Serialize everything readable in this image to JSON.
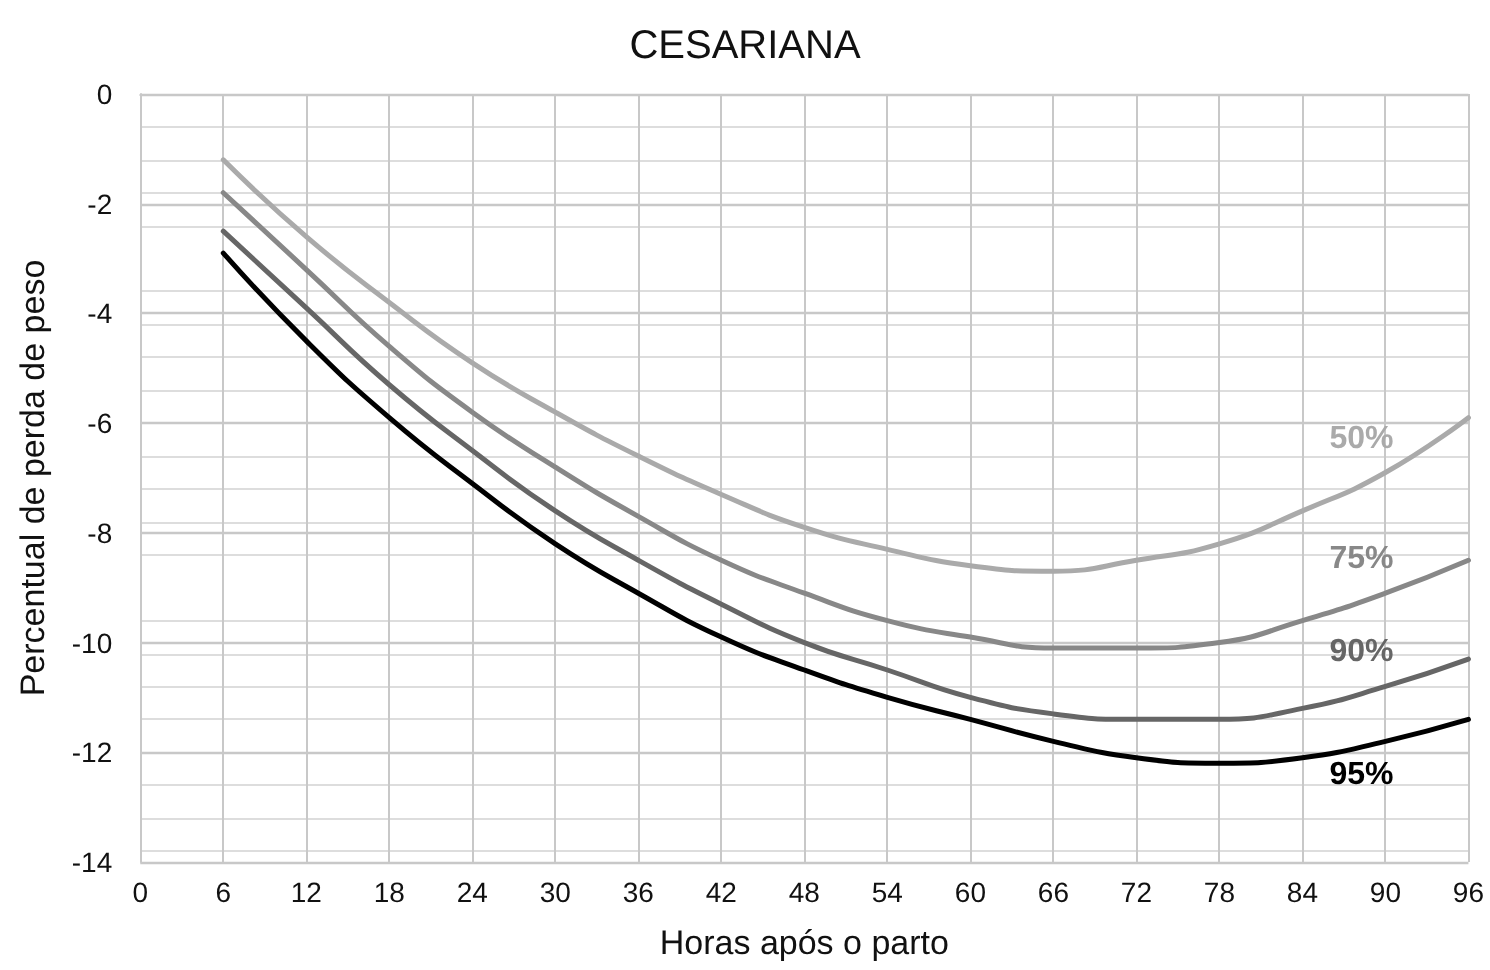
{
  "chart_data": {
    "type": "line",
    "title": "CESARIANA",
    "xlabel": "Horas após o parto",
    "ylabel": "Percentual de perda de peso",
    "x": [
      6,
      12,
      18,
      24,
      30,
      36,
      42,
      48,
      54,
      60,
      66,
      72,
      78,
      84,
      90,
      96
    ],
    "series": [
      {
        "name": "50%",
        "color": "#aaaaaa",
        "values": [
          -1.2,
          -2.6,
          -3.8,
          -4.9,
          -5.8,
          -6.6,
          -7.3,
          -7.9,
          -8.3,
          -8.6,
          -8.7,
          -8.5,
          -8.2,
          -7.6,
          -6.9,
          -5.9
        ]
      },
      {
        "name": "75%",
        "color": "#888888",
        "values": [
          -1.8,
          -3.2,
          -4.6,
          -5.8,
          -6.8,
          -7.7,
          -8.5,
          -9.1,
          -9.6,
          -9.9,
          -10.1,
          -10.1,
          -10.0,
          -9.6,
          -9.1,
          -8.5
        ]
      },
      {
        "name": "90%",
        "color": "#666666",
        "values": [
          -2.5,
          -3.9,
          -5.3,
          -6.5,
          -7.6,
          -8.5,
          -9.3,
          -10.0,
          -10.5,
          -11.0,
          -11.3,
          -11.4,
          -11.4,
          -11.2,
          -10.8,
          -10.3
        ]
      },
      {
        "name": "95%",
        "color": "#000000",
        "values": [
          -2.9,
          -4.5,
          -5.9,
          -7.1,
          -8.2,
          -9.1,
          -9.9,
          -10.5,
          -11.0,
          -11.4,
          -11.8,
          -12.1,
          -12.2,
          -12.1,
          -11.8,
          -11.4
        ]
      }
    ],
    "xlim": [
      0,
      96
    ],
    "xticks": [
      0,
      6,
      12,
      18,
      24,
      30,
      36,
      42,
      48,
      54,
      60,
      66,
      72,
      78,
      84,
      90,
      96
    ],
    "ylim": [
      -14,
      0
    ],
    "yticks": [
      -14,
      -12,
      -10,
      -8,
      -6,
      -4,
      -2,
      0
    ],
    "grid": true,
    "legend": false,
    "marker": "none",
    "line_style": "solid"
  }
}
